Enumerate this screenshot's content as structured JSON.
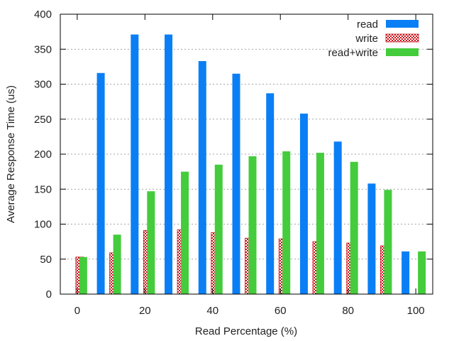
{
  "chart_data": {
    "type": "bar",
    "xlabel": "Read Percentage (%)",
    "ylabel": "Average Response Time (us)",
    "x_categories": [
      0,
      10,
      20,
      30,
      40,
      50,
      60,
      70,
      80,
      90,
      100
    ],
    "x_tick_labels": [
      "0",
      "20",
      "40",
      "60",
      "80",
      "100"
    ],
    "x_tick_values": [
      0,
      20,
      40,
      60,
      80,
      100
    ],
    "xlim": [
      -5,
      105
    ],
    "y_tick_labels": [
      "0",
      "50",
      "100",
      "150",
      "200",
      "250",
      "300",
      "350",
      "400"
    ],
    "y_tick_values": [
      0,
      50,
      100,
      150,
      200,
      250,
      300,
      350,
      400
    ],
    "ylim": [
      0,
      400
    ],
    "grid": "horizontal dotted",
    "legend_position": "top-right",
    "series": [
      {
        "name": "read",
        "color": "#0a7ff5",
        "pattern": "solid",
        "values": [
          0,
          316,
          371,
          371,
          333,
          315,
          287,
          258,
          218,
          158,
          61
        ]
      },
      {
        "name": "write",
        "color": "#c9141b",
        "pattern": "checker",
        "values": [
          53,
          59,
          91,
          92,
          88,
          80,
          79,
          75,
          73,
          69,
          0
        ]
      },
      {
        "name": "read+write",
        "color": "#44cc3c",
        "pattern": "solid",
        "values": [
          53,
          85,
          147,
          175,
          185,
          197,
          204,
          202,
          189,
          149,
          61
        ]
      }
    ]
  }
}
